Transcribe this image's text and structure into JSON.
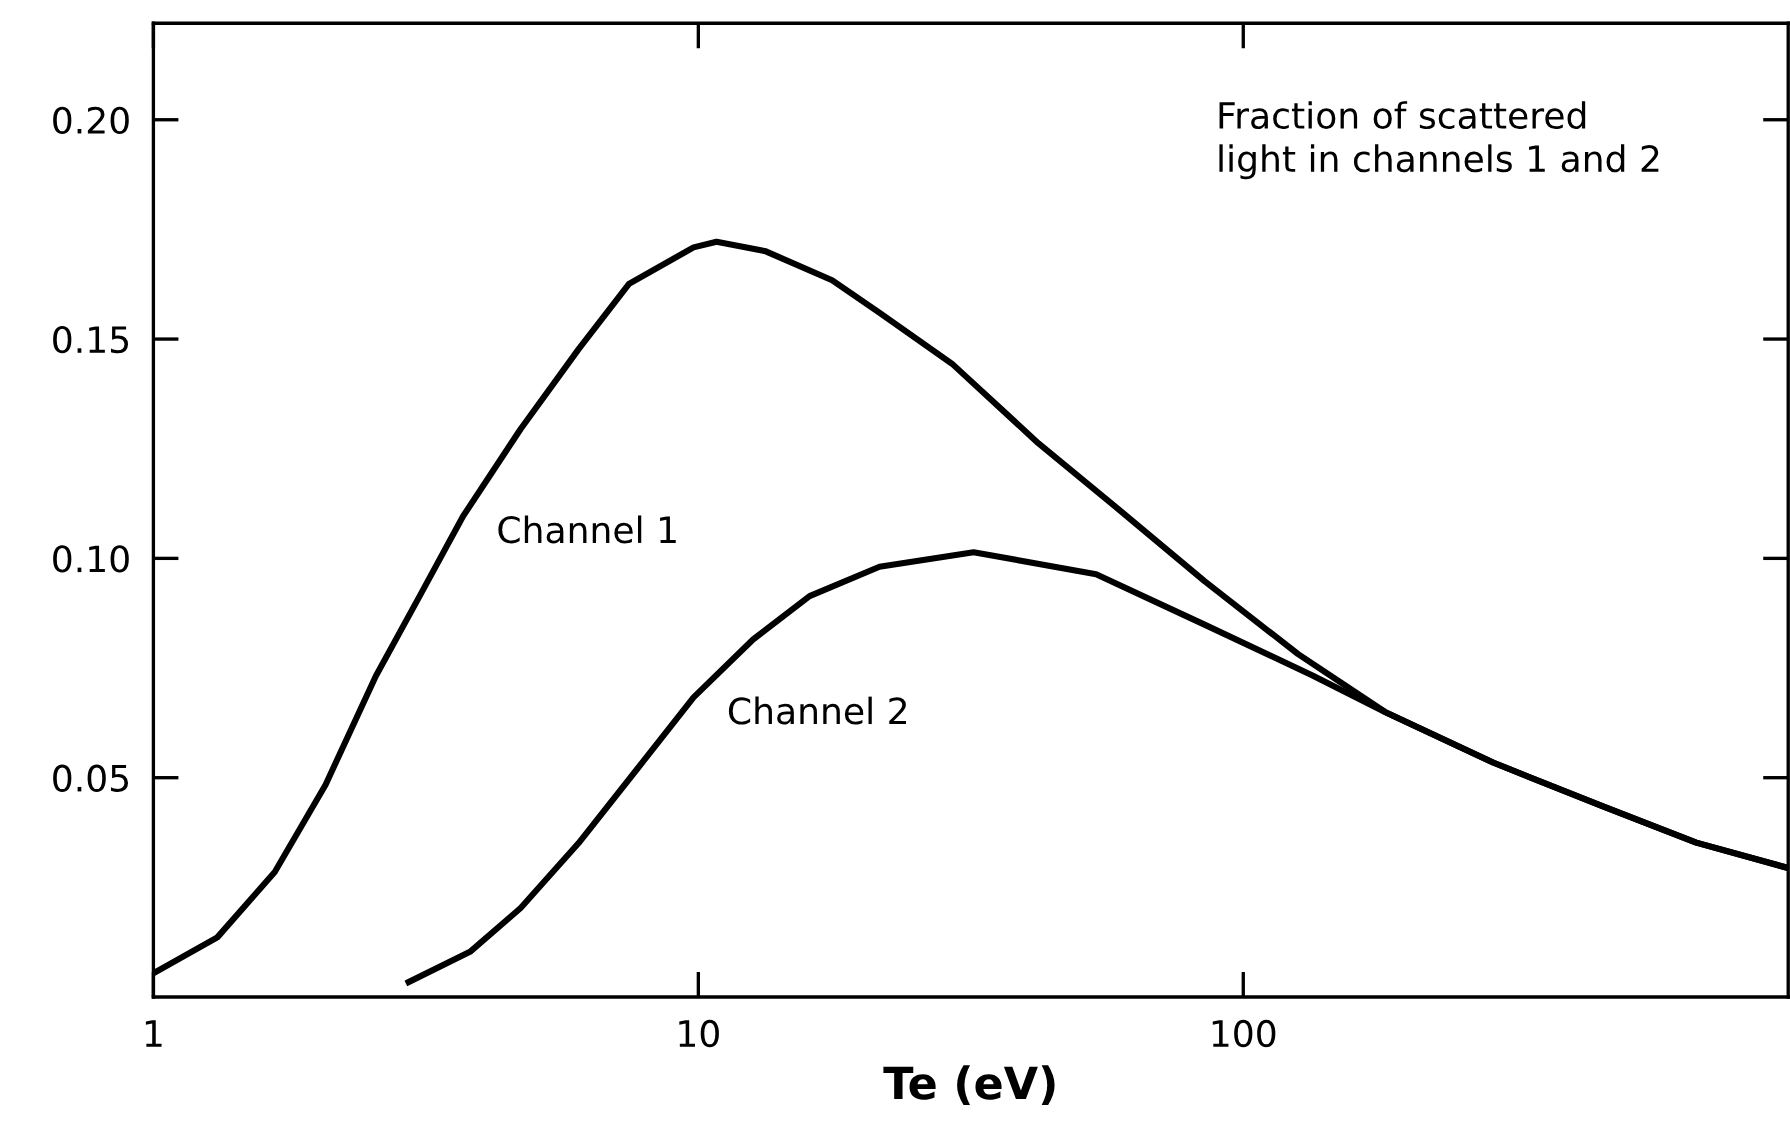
{
  "chart_data": {
    "type": "line",
    "xlabel": "Te (eV)",
    "log": "x",
    "xlim": [
      1,
      1000
    ],
    "xticks": [
      1,
      10,
      100
    ],
    "ylim": [
      0,
      0.222
    ],
    "yticks": [
      {
        "value": 0.05,
        "label": "0.05"
      },
      {
        "value": 0.1,
        "label": "0.10"
      },
      {
        "value": 0.15,
        "label": "0.15"
      },
      {
        "value": 0.2,
        "label": "0.20"
      }
    ],
    "grid": false,
    "marker": "none",
    "line_style": "solid",
    "series": [
      {
        "name": "Channel 1",
        "color": "#000000",
        "x": [
          1,
          1.31,
          1.67,
          2.07,
          2.56,
          3.08,
          3.7,
          4.72,
          6.03,
          7.46,
          9.8,
          10.8,
          13.3,
          17.6,
          21.5,
          29.2,
          42.1,
          58.9,
          84.9,
          126,
          182,
          288,
          456,
          678,
          1000
        ],
        "values": [
          0.0054,
          0.0136,
          0.0285,
          0.0484,
          0.0732,
          0.0914,
          0.1096,
          0.1295,
          0.1477,
          0.1626,
          0.1709,
          0.1722,
          0.17,
          0.1634,
          0.156,
          0.1444,
          0.1262,
          0.1113,
          0.0948,
          0.0782,
          0.065,
          0.0534,
          0.0435,
          0.0352,
          0.0294
        ]
      },
      {
        "name": "Channel 2",
        "color": "#000000",
        "x": [
          2.94,
          3.81,
          4.72,
          6.03,
          7.69,
          9.8,
          12.6,
          16.0,
          21.5,
          32.0,
          53.7,
          84.9,
          134,
          182,
          288,
          456,
          678,
          1000
        ],
        "values": [
          0.0034,
          0.0103,
          0.0203,
          0.0351,
          0.0517,
          0.0683,
          0.0815,
          0.0914,
          0.0981,
          0.1014,
          0.0964,
          0.0849,
          0.0733,
          0.065,
          0.0534,
          0.0435,
          0.0352,
          0.0294
        ]
      }
    ],
    "annotations": [
      "Fraction of scattered\nlight in channels 1 and 2"
    ]
  }
}
